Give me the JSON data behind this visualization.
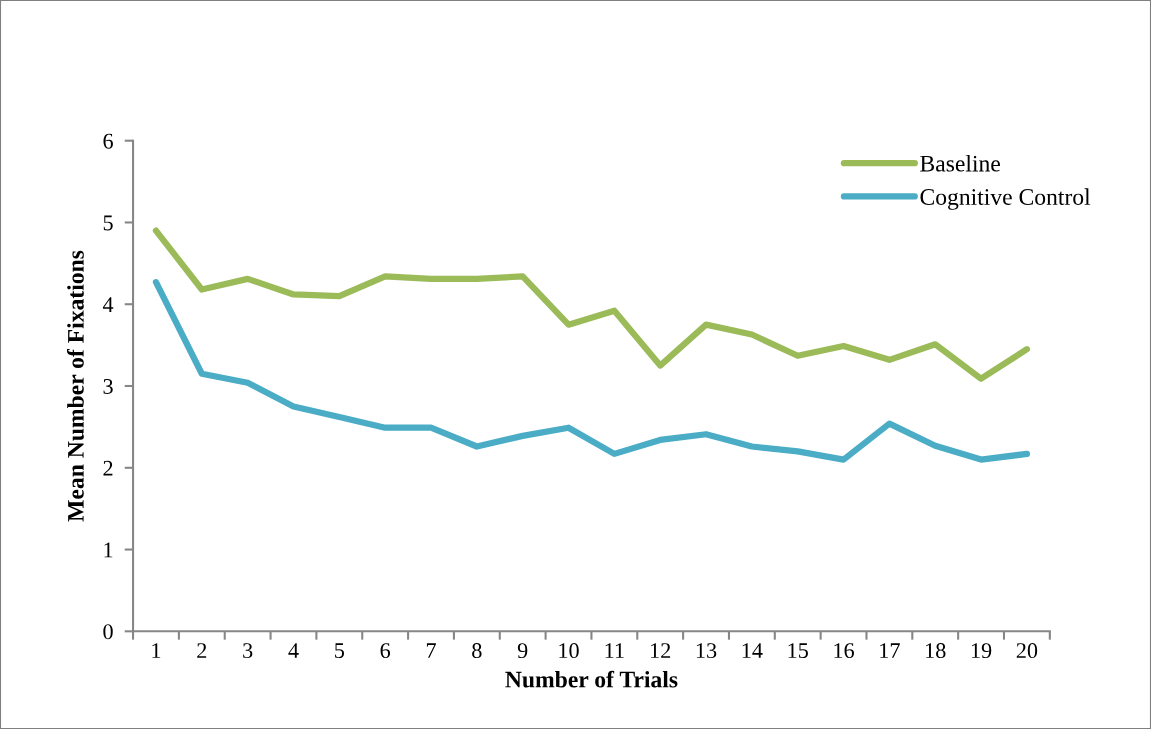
{
  "chart_data": {
    "type": "line",
    "xlabel": "Number of Trials",
    "ylabel": "Mean Number of Fixations",
    "categories": [
      "1",
      "2",
      "3",
      "4",
      "5",
      "6",
      "7",
      "8",
      "9",
      "10",
      "11",
      "12",
      "13",
      "14",
      "15",
      "16",
      "17",
      "18",
      "19",
      "20"
    ],
    "series": [
      {
        "name": "Baseline",
        "color": "#9bbb59",
        "values": [
          4.9,
          4.18,
          4.31,
          4.12,
          4.1,
          4.34,
          4.31,
          4.31,
          4.34,
          3.75,
          3.92,
          3.25,
          3.75,
          3.63,
          3.37,
          3.49,
          3.32,
          3.51,
          3.09,
          3.45
        ]
      },
      {
        "name": "Cognitive Control",
        "color": "#4bacc6",
        "values": [
          4.27,
          3.15,
          3.04,
          2.75,
          2.62,
          2.49,
          2.49,
          2.26,
          2.39,
          2.49,
          2.17,
          2.34,
          2.41,
          2.26,
          2.2,
          2.1,
          2.54,
          2.27,
          2.1,
          2.17
        ]
      }
    ],
    "ylim": [
      0,
      6
    ],
    "yticks": [
      0,
      1,
      2,
      3,
      4,
      5,
      6
    ],
    "grid": false,
    "legend": "top right",
    "marker": "none",
    "line_style": "solid"
  }
}
